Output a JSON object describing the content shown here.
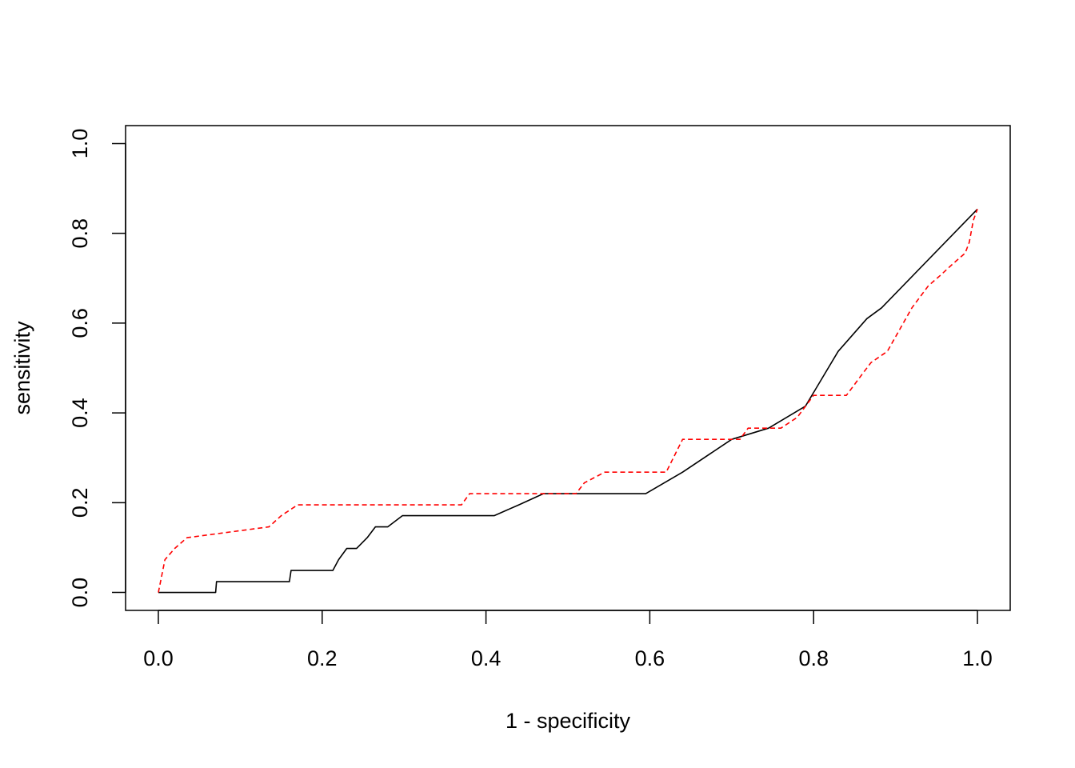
{
  "chart_data": {
    "type": "line",
    "title": "",
    "xlabel": "1 - specificity",
    "ylabel": "sensitivity",
    "xlim": [
      -0.04,
      1.04
    ],
    "ylim": [
      -0.04,
      1.04
    ],
    "x_ticks": [
      0.0,
      0.2,
      0.4,
      0.6,
      0.8,
      1.0
    ],
    "x_tick_labels": [
      "0.0",
      "0.2",
      "0.4",
      "0.6",
      "0.8",
      "1.0"
    ],
    "y_ticks": [
      0.0,
      0.2,
      0.4,
      0.6,
      0.8,
      1.0
    ],
    "y_tick_labels": [
      "0.0",
      "0.2",
      "0.4",
      "0.6",
      "0.8",
      "1.0"
    ],
    "grid": false,
    "legend": "none",
    "series": [
      {
        "color": "#000000",
        "dash": "solid",
        "x": [
          0.0,
          0.07,
          0.071,
          0.16,
          0.162,
          0.213,
          0.22,
          0.23,
          0.242,
          0.255,
          0.265,
          0.28,
          0.298,
          0.41,
          0.44,
          0.47,
          0.595,
          0.64,
          0.7,
          0.745,
          0.79,
          0.83,
          0.865,
          0.883,
          1.0
        ],
        "y": [
          0.0,
          0.0,
          0.024,
          0.024,
          0.049,
          0.049,
          0.073,
          0.098,
          0.098,
          0.122,
          0.146,
          0.146,
          0.171,
          0.171,
          0.195,
          0.22,
          0.22,
          0.268,
          0.341,
          0.366,
          0.415,
          0.537,
          0.61,
          0.634,
          0.854
        ]
      },
      {
        "color": "#ff0000",
        "dash": "dashed",
        "x": [
          0.0,
          0.008,
          0.02,
          0.035,
          0.135,
          0.15,
          0.17,
          0.37,
          0.38,
          0.51,
          0.52,
          0.545,
          0.62,
          0.64,
          0.71,
          0.72,
          0.76,
          0.78,
          0.8,
          0.84,
          0.86,
          0.87,
          0.89,
          0.92,
          0.94,
          0.955,
          0.97,
          0.985,
          0.99,
          0.995,
          1.0
        ],
        "y": [
          0.0,
          0.073,
          0.098,
          0.122,
          0.146,
          0.171,
          0.195,
          0.195,
          0.22,
          0.22,
          0.244,
          0.268,
          0.268,
          0.341,
          0.341,
          0.366,
          0.366,
          0.39,
          0.439,
          0.439,
          0.488,
          0.512,
          0.537,
          0.634,
          0.683,
          0.707,
          0.732,
          0.756,
          0.78,
          0.829,
          0.854
        ]
      }
    ]
  }
}
